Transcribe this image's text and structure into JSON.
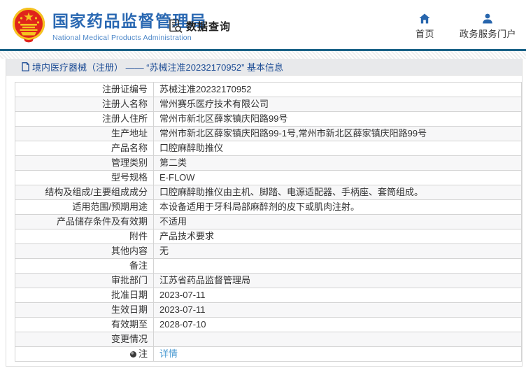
{
  "header": {
    "org_name_zh": "国家药品监督管理局",
    "org_name_en": "National Medical Products Administration",
    "section_label": "数据查询",
    "nav": [
      {
        "label": "首页",
        "icon": "home-icon"
      },
      {
        "label": "政务服务门户",
        "icon": "user-icon"
      }
    ]
  },
  "breadcrumb": {
    "text": "境内医疗器械（注册） —— “苏械注准20232170952” 基本信息"
  },
  "table": {
    "rows": [
      {
        "label": "注册证编号",
        "value": "苏械注准20232170952"
      },
      {
        "label": "注册人名称",
        "value": "常州赛乐医疗技术有限公司"
      },
      {
        "label": "注册人住所",
        "value": "常州市新北区薛家镇庆阳路99号"
      },
      {
        "label": "生产地址",
        "value": "常州市新北区薛家镇庆阳路99-1号,常州市新北区薛家镇庆阳路99号"
      },
      {
        "label": "产品名称",
        "value": "口腔麻醉助推仪"
      },
      {
        "label": "管理类别",
        "value": "第二类"
      },
      {
        "label": "型号规格",
        "value": "E-FLOW"
      },
      {
        "label": "结构及组成/主要组成成分",
        "value": "口腔麻醉助推仪由主机、脚踏、电源适配器、手柄座、套筒组成。"
      },
      {
        "label": "适用范围/预期用途",
        "value": "本设备适用于牙科局部麻醉剂的皮下或肌肉注射。"
      },
      {
        "label": "产品储存条件及有效期",
        "value": "不适用"
      },
      {
        "label": "附件",
        "value": "产品技术要求"
      },
      {
        "label": "其他内容",
        "value": "无"
      },
      {
        "label": "备注",
        "value": ""
      },
      {
        "label": "审批部门",
        "value": "江苏省药品监督管理局"
      },
      {
        "label": "批准日期",
        "value": "2023-07-11"
      },
      {
        "label": "生效日期",
        "value": "2023-07-11"
      },
      {
        "label": "有效期至",
        "value": "2028-07-10"
      },
      {
        "label": "变更情况",
        "value": ""
      },
      {
        "label": "注",
        "value": "详情",
        "link": true,
        "icon": "note-icon"
      }
    ]
  },
  "colors": {
    "brand_blue": "#2a68b2",
    "brand_blue_light": "#4d87c8",
    "top_line": "#1a6287",
    "crumb_bg": "#e8e9eb",
    "crumb_text": "#1f4e96",
    "row_alt": "#f7f7f8",
    "border": "#d4d4d4",
    "link": "#4a9ad2",
    "emblem_red": "#e0251b",
    "emblem_gold": "#f5c51f"
  }
}
